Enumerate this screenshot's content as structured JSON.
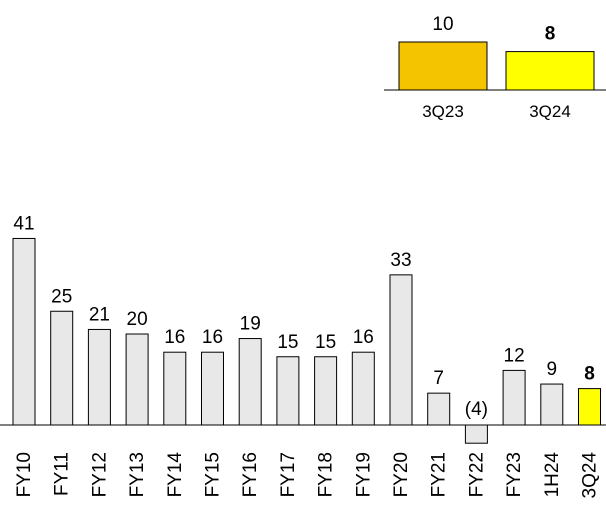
{
  "chart_data": [
    {
      "type": "bar",
      "categories": [
        "3Q23",
        "3Q24"
      ],
      "values": [
        10,
        8
      ],
      "value_labels": [
        "10",
        "8"
      ],
      "colors": [
        "#f5c400",
        "#ffff00"
      ],
      "bold_labels": [
        false,
        true
      ]
    },
    {
      "type": "bar",
      "categories": [
        "FY10",
        "FY11",
        "FY12",
        "FY13",
        "FY14",
        "FY15",
        "FY16",
        "FY17",
        "FY18",
        "FY19",
        "FY20",
        "FY21",
        "FY22",
        "FY23",
        "1H24",
        "3Q24"
      ],
      "values": [
        41,
        25,
        21,
        20,
        16,
        16,
        19,
        15,
        15,
        16,
        33,
        7,
        -4,
        12,
        9,
        8
      ],
      "value_labels": [
        "41",
        "25",
        "21",
        "20",
        "16",
        "16",
        "19",
        "15",
        "15",
        "16",
        "33",
        "7",
        "(4)",
        "12",
        "9",
        "8"
      ],
      "bar_color": "#e8e8e8",
      "highlight_index": 15,
      "highlight_color": "#ffff00"
    }
  ]
}
